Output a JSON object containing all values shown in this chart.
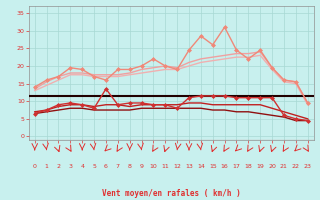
{
  "xlabel": "Vent moyen/en rafales ( km/h )",
  "bg_color": "#c8f0ee",
  "grid_color": "#a8d8d4",
  "ylim": [
    -1,
    37
  ],
  "xlim": [
    -0.5,
    23.5
  ],
  "yticks": [
    0,
    5,
    10,
    15,
    20,
    25,
    30,
    35
  ],
  "xticks": [
    0,
    1,
    2,
    3,
    4,
    5,
    6,
    7,
    8,
    9,
    10,
    11,
    12,
    13,
    14,
    15,
    16,
    17,
    18,
    19,
    20,
    21,
    22,
    23
  ],
  "line_rafales_jagged": {
    "y": [
      14,
      16,
      17,
      19.5,
      19,
      17,
      16,
      19,
      19,
      20,
      22,
      20,
      19,
      24.5,
      28.5,
      26,
      31,
      24.5,
      22,
      24.5,
      19.5,
      16,
      15.5,
      9.5
    ],
    "color": "#f08878",
    "lw": 1.0,
    "marker": "D",
    "ms": 2.0
  },
  "line_rafales_smooth1": {
    "y": [
      13.5,
      15.5,
      17,
      18,
      18,
      17.5,
      17.5,
      17.5,
      18,
      19,
      19.5,
      20,
      19.5,
      21,
      22,
      22.5,
      23,
      23.5,
      23.5,
      24,
      19.5,
      16,
      15.5,
      9.5
    ],
    "color": "#f0a0a0",
    "lw": 1.0,
    "marker": null,
    "ms": 0
  },
  "line_rafales_smooth2": {
    "y": [
      13,
      14.5,
      16,
      17.5,
      17.5,
      17,
      17,
      17,
      17.5,
      18,
      18.5,
      19,
      19,
      20,
      21,
      21.5,
      22,
      22.5,
      22.5,
      23,
      19,
      15.5,
      15,
      9
    ],
    "color": "#f0b0b0",
    "lw": 1.0,
    "marker": null,
    "ms": 0
  },
  "line_moyen_jagged": {
    "y": [
      6.5,
      7.5,
      9,
      9.5,
      9,
      8,
      13.5,
      9,
      9.5,
      9.5,
      9,
      9,
      8,
      11,
      11.5,
      11.5,
      11.5,
      11,
      11,
      11,
      11,
      6,
      5,
      4.5
    ],
    "color": "#d03030",
    "lw": 1.0,
    "marker": "D",
    "ms": 2.0
  },
  "line_moyen_smooth1": {
    "y": [
      7,
      7.5,
      8.5,
      9,
      9,
      8.5,
      9,
      9,
      8.5,
      9,
      9,
      9,
      9,
      9.5,
      9.5,
      9,
      9,
      9,
      9,
      9,
      8,
      7,
      6,
      5
    ],
    "color": "#c02020",
    "lw": 1.0,
    "marker": null,
    "ms": 0
  },
  "line_moyen_smooth2": {
    "y": [
      6.5,
      7,
      7.5,
      8,
      8,
      7.5,
      7.5,
      7.5,
      7.5,
      8,
      8,
      8,
      8,
      8,
      8,
      7.5,
      7.5,
      7,
      7,
      6.5,
      6,
      5.5,
      4.5,
      4.5
    ],
    "color": "#901010",
    "lw": 1.0,
    "marker": null,
    "ms": 0
  },
  "line_constant": {
    "y_val": 11.5,
    "color": "#200000",
    "lw": 1.5
  },
  "tick_color": "#e03030",
  "label_color": "#e03030",
  "arrow_color": "#e03030",
  "arrow_angles": [
    0,
    15,
    30,
    45,
    0,
    15,
    300,
    315,
    0,
    15,
    315,
    330,
    345,
    0,
    15,
    330,
    315,
    300,
    315,
    330,
    330,
    315,
    300,
    45
  ]
}
